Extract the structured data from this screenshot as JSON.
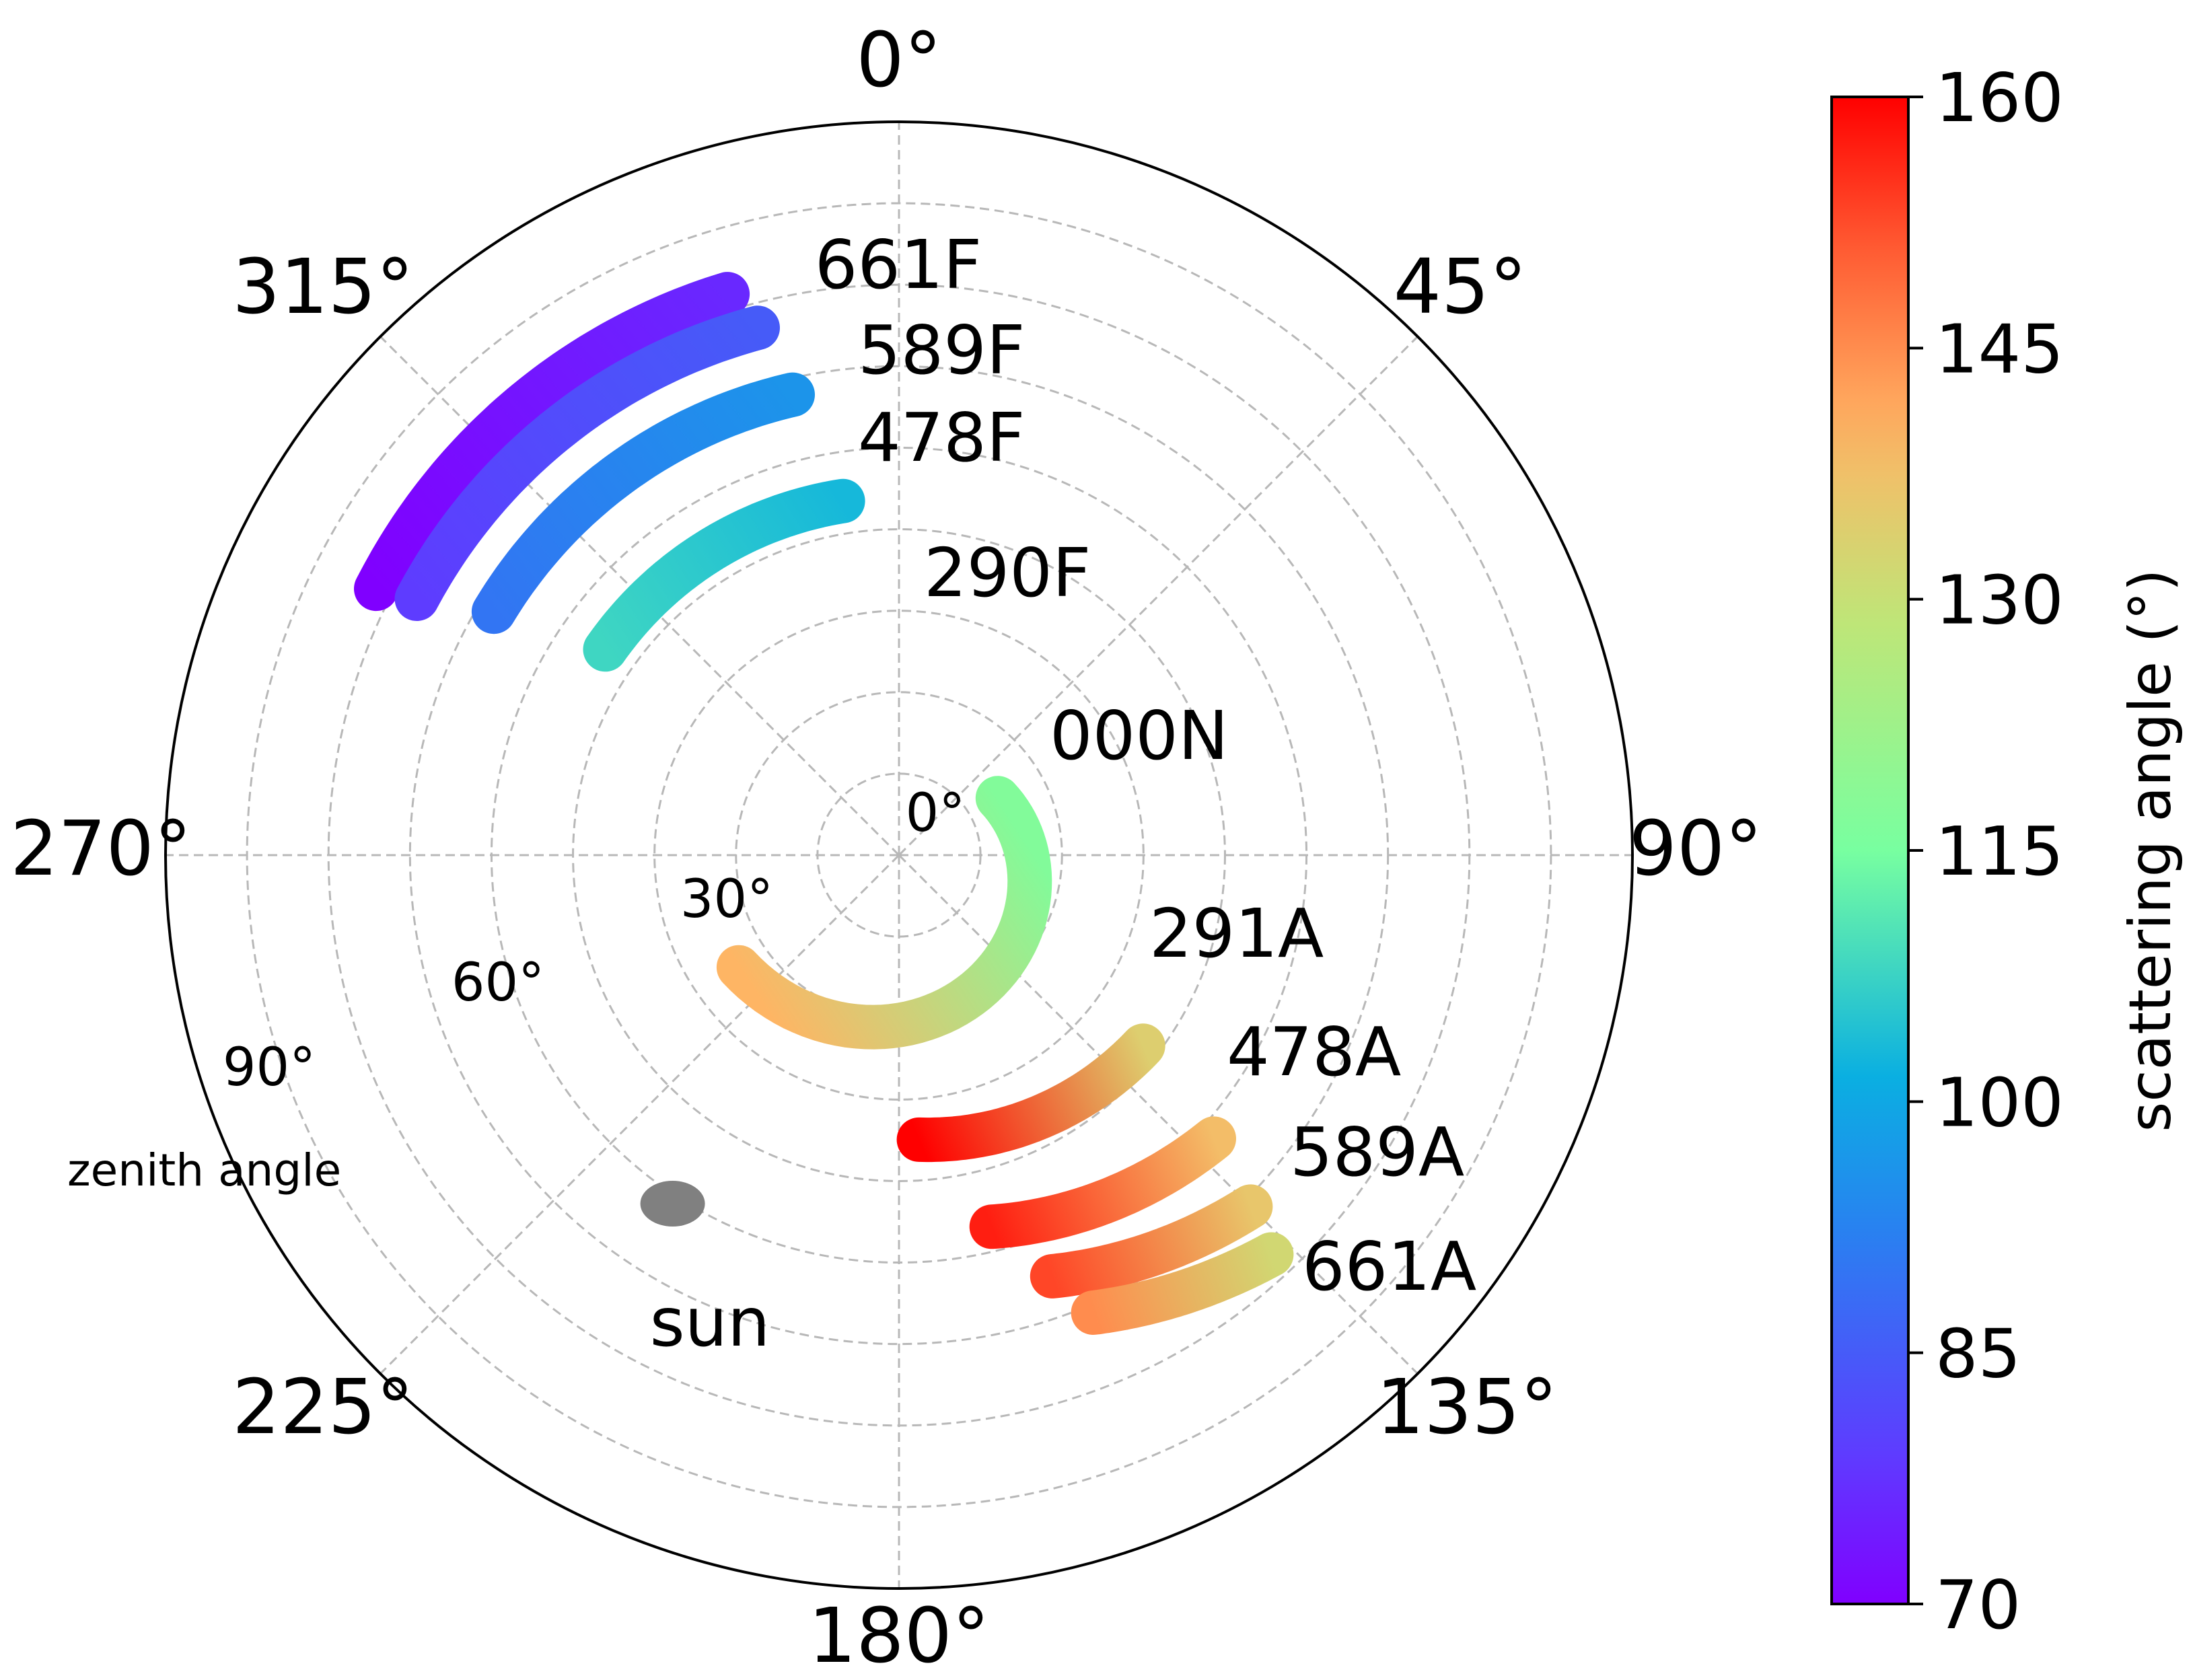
{
  "chart_data": {
    "type": "scatter",
    "projection": "polar",
    "title": "",
    "theta_direction": "clockwise",
    "theta_zero": "top",
    "theta_ticks": [
      "0°",
      "45°",
      "90°",
      "135°",
      "180°",
      "225°",
      "270°",
      "315°"
    ],
    "r_label": "zenith angle",
    "r_range": [
      0,
      90
    ],
    "r_ticks": [
      "0°",
      "30°",
      "60°",
      "90°"
    ],
    "grid": true,
    "colorbar": {
      "label": "scattering angle (°)",
      "colormap": "rainbow",
      "range": [
        70,
        160
      ],
      "ticks": [
        "70",
        "85",
        "100",
        "115",
        "130",
        "145",
        "160"
      ]
    },
    "series": [
      {
        "name": "661F",
        "azimuth": [
          297,
          343
        ],
        "zenith": 72,
        "scattering_angle": [
          70,
          76
        ]
      },
      {
        "name": "589F",
        "azimuth": [
          298,
          345
        ],
        "zenith": 67,
        "scattering_angle": [
          79,
          85
        ]
      },
      {
        "name": "478F",
        "azimuth": [
          301,
          347
        ],
        "zenith": 58,
        "scattering_angle": [
          90,
          96
        ]
      },
      {
        "name": "290F",
        "azimuth": [
          305,
          351
        ],
        "zenith": 44,
        "scattering_angle": [
          108,
          103
        ]
      },
      {
        "name": "000N",
        "azimuth": [
          235,
          60
        ],
        "zenith": [
          24,
          14
        ],
        "scattering_angle": [
          140,
          117
        ]
      },
      {
        "name": "291A",
        "azimuth": [
          176,
          128
        ],
        "zenith": [
          35,
          38
        ],
        "scattering_angle": [
          160,
          134
        ]
      },
      {
        "name": "478A",
        "azimuth": [
          166,
          132
        ],
        "zenith": [
          47,
          52
        ],
        "scattering_angle": [
          157,
          138
        ]
      },
      {
        "name": "589A",
        "azimuth": [
          160,
          135
        ],
        "zenith": [
          55,
          61
        ],
        "scattering_angle": [
          153,
          136
        ]
      },
      {
        "name": "661A",
        "azimuth": [
          157,
          137
        ],
        "zenith": [
          61,
          67
        ],
        "scattering_angle": [
          145,
          132
        ]
      },
      {
        "name": "sun",
        "azimuth": 213,
        "zenith": 51,
        "color": "#808080"
      }
    ]
  }
}
